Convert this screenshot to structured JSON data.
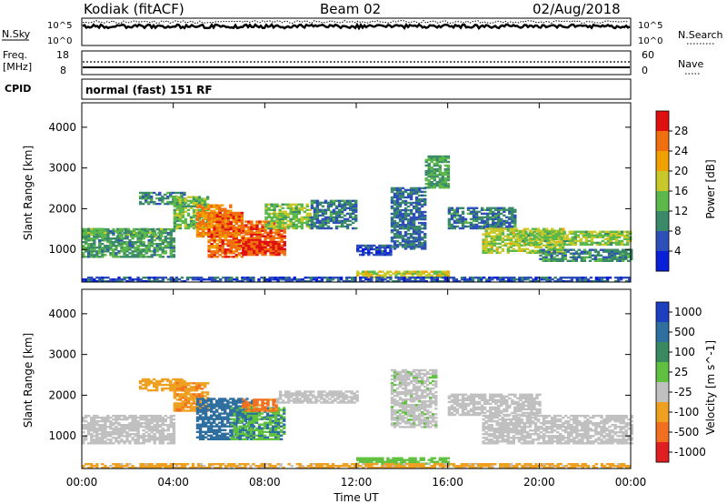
{
  "header": {
    "radar": "Kodiak (fitACF)",
    "beam": "Beam 02",
    "date": "02/Aug/2018"
  },
  "top_panels": {
    "nsky_label": "N.Sky",
    "nsearch_label": "N.Search",
    "noise_tick_top": "10^5",
    "noise_tick_bottom": "10^0",
    "freq_label": "Freq.",
    "freq_unit": "[MHz]",
    "freq_ticks": [
      "18",
      "8"
    ],
    "nave_label": "Nave",
    "nave_ticks": [
      "60",
      "0"
    ],
    "cpid_label": "CPID",
    "cpid_value": "normal (fast) 151 RF"
  },
  "chart_data": [
    {
      "type": "heatmap",
      "name": "power",
      "ylabel": "Slant Range [km]",
      "xlabel": "",
      "y_ticks": [
        "1000",
        "2000",
        "3000",
        "4000"
      ],
      "ylim": [
        200,
        4600
      ],
      "xlim": [
        0,
        24
      ],
      "colorbar_label": "Power [dB]",
      "colorbar_ticks": [
        "4",
        "8",
        "12",
        "16",
        "20",
        "24",
        "28"
      ],
      "colorbar_colors": [
        "#0a1fd8",
        "#2e4fb8",
        "#3a8a6a",
        "#5cb84a",
        "#c8c828",
        "#f0a000",
        "#f07010",
        "#e01010"
      ],
      "colorbar_range": [
        0,
        32
      ],
      "echo_regions": [
        {
          "t0": 0.0,
          "t1": 4.0,
          "r0": 800,
          "r1": 1500,
          "level": 11
        },
        {
          "t0": 0.0,
          "t1": 1.0,
          "r0": 1350,
          "r1": 1500,
          "level": 14
        },
        {
          "t0": 1.5,
          "t1": 3.5,
          "r0": 1300,
          "r1": 1500,
          "level": 13
        },
        {
          "t0": 2.5,
          "t1": 4.5,
          "r0": 2100,
          "r1": 2400,
          "level": 10
        },
        {
          "t0": 4.0,
          "t1": 5.5,
          "r0": 1500,
          "r1": 2300,
          "level": 14
        },
        {
          "t0": 5.0,
          "t1": 6.5,
          "r0": 1300,
          "r1": 2100,
          "level": 24
        },
        {
          "t0": 5.5,
          "t1": 7.0,
          "r0": 800,
          "r1": 1900,
          "level": 26
        },
        {
          "t0": 7.0,
          "t1": 8.8,
          "r0": 900,
          "r1": 1700,
          "level": 27
        },
        {
          "t0": 7.0,
          "t1": 8.8,
          "r0": 850,
          "r1": 1200,
          "level": 29
        },
        {
          "t0": 8.0,
          "t1": 10.0,
          "r0": 1500,
          "r1": 2100,
          "level": 15
        },
        {
          "t0": 10.0,
          "t1": 12.0,
          "r0": 1500,
          "r1": 2200,
          "level": 9
        },
        {
          "t0": 12.0,
          "t1": 13.5,
          "r0": 850,
          "r1": 1100,
          "level": 5
        },
        {
          "t0": 12.0,
          "t1": 16.0,
          "r0": 300,
          "r1": 480,
          "level": 18
        },
        {
          "t0": 13.5,
          "t1": 15.0,
          "r0": 1000,
          "r1": 2500,
          "level": 8
        },
        {
          "t0": 15.0,
          "t1": 16.0,
          "r0": 2500,
          "r1": 3300,
          "level": 12
        },
        {
          "t0": 16.0,
          "t1": 19.0,
          "r0": 1500,
          "r1": 2000,
          "level": 9
        },
        {
          "t0": 17.5,
          "t1": 21.0,
          "r0": 900,
          "r1": 1500,
          "level": 17
        },
        {
          "t0": 19.0,
          "t1": 24.0,
          "r0": 1100,
          "r1": 1450,
          "level": 15
        },
        {
          "t0": 20.0,
          "t1": 24.0,
          "r0": 700,
          "r1": 1000,
          "level": 10
        },
        {
          "t0": 0.0,
          "t1": 24.0,
          "r0": 200,
          "r1": 330,
          "level": 6
        }
      ]
    },
    {
      "type": "heatmap",
      "name": "velocity",
      "ylabel": "Slant Range [km]",
      "xlabel": "Time UT",
      "x_ticks": [
        "00:00",
        "04:00",
        "08:00",
        "12:00",
        "16:00",
        "20:00",
        "00:00"
      ],
      "y_ticks": [
        "1000",
        "2000",
        "3000",
        "4000"
      ],
      "ylim": [
        200,
        4600
      ],
      "xlim": [
        0,
        24
      ],
      "colorbar_label": "Velocity [m s^-1]",
      "colorbar_ticks": [
        "1000",
        "500",
        "100",
        "25",
        "-25",
        "-100",
        "-500",
        "-1000"
      ],
      "colorbar_colors": [
        "#1c3fc0",
        "#2f6fa0",
        "#3a8a60",
        "#60c040",
        "#c0c0c0",
        "#f0a020",
        "#f07020",
        "#e02020"
      ],
      "colorbar_range": [
        -1200,
        1200
      ],
      "echo_regions": [
        {
          "t0": 0.0,
          "t1": 4.0,
          "r0": 800,
          "r1": 1500,
          "level": 0
        },
        {
          "t0": 2.5,
          "t1": 4.5,
          "r0": 2100,
          "r1": 2400,
          "level": -60
        },
        {
          "t0": 4.0,
          "t1": 5.5,
          "r0": 1600,
          "r1": 2300,
          "level": -80
        },
        {
          "t0": 5.0,
          "t1": 7.5,
          "r0": 900,
          "r1": 1900,
          "level": 300
        },
        {
          "t0": 6.5,
          "t1": 8.8,
          "r0": 900,
          "r1": 1700,
          "level": 90
        },
        {
          "t0": 7.0,
          "t1": 8.5,
          "r0": 1600,
          "r1": 1900,
          "level": -150
        },
        {
          "t0": 8.5,
          "t1": 12.0,
          "r0": 1800,
          "r1": 2100,
          "level": 0
        },
        {
          "t0": 12.0,
          "t1": 16.0,
          "r0": 300,
          "r1": 480,
          "level": 60
        },
        {
          "t0": 13.5,
          "t1": 15.5,
          "r0": 1200,
          "r1": 2600,
          "level": 10
        },
        {
          "t0": 16.0,
          "t1": 20.0,
          "r0": 1500,
          "r1": 2000,
          "level": 0
        },
        {
          "t0": 17.5,
          "t1": 24.0,
          "r0": 800,
          "r1": 1500,
          "level": 0
        },
        {
          "t0": 0.0,
          "t1": 24.0,
          "r0": 200,
          "r1": 330,
          "level": -40
        }
      ]
    }
  ]
}
